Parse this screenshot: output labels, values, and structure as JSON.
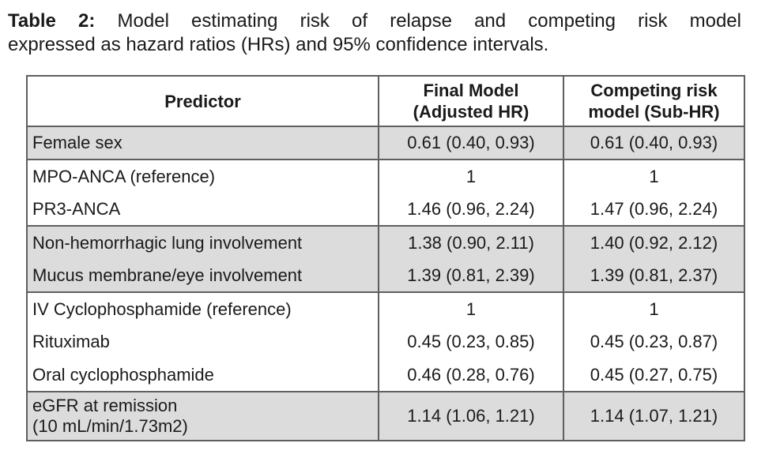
{
  "caption": {
    "label": "Table 2:",
    "line1_rest": "Model estimating risk of relapse and competing risk model",
    "line2": "expressed as hazard ratios (HRs) and 95% confidence intervals."
  },
  "colors": {
    "row_shading": "#dcdcdc",
    "table_border": "#5f5f5f",
    "text": "#1a1a1a"
  },
  "table": {
    "headers": [
      "Predictor",
      "Final Model (Adjusted HR)",
      "Competing risk model (Sub-HR)"
    ],
    "rows": [
      {
        "predictor": "Female sex",
        "final": "0.61 (0.40, 0.93)",
        "competing": "0.61 (0.40, 0.93)",
        "shaded": true
      },
      {
        "predictor": "MPO-ANCA (reference)",
        "final": "1",
        "competing": "1",
        "shaded": false
      },
      {
        "predictor": "PR3-ANCA",
        "final": "1.46 (0.96, 2.24)",
        "competing": "1.47 (0.96, 2.24)",
        "shaded": false
      },
      {
        "predictor": "Non-hemorrhagic lung involvement",
        "final": "1.38 (0.90, 2.11)",
        "competing": "1.40 (0.92, 2.12)",
        "shaded": true
      },
      {
        "predictor": "Mucus membrane/eye involvement",
        "final": "1.39 (0.81, 2.39)",
        "competing": "1.39 (0.81, 2.37)",
        "shaded": true
      },
      {
        "predictor": "IV Cyclophosphamide (reference)",
        "final": "1",
        "competing": "1",
        "shaded": false
      },
      {
        "predictor": "Rituximab",
        "final": "0.45 (0.23, 0.85)",
        "competing": "0.45 (0.23, 0.87)",
        "shaded": false
      },
      {
        "predictor": "Oral cyclophosphamide",
        "final": "0.46 (0.28, 0.76)",
        "competing": "0.45 (0.27, 0.75)",
        "shaded": false
      },
      {
        "predictor": "eGFR at remission",
        "predictor_line2": "(10 mL/min/1.73m2)",
        "final": "1.14 (1.06, 1.21)",
        "competing": "1.14 (1.07, 1.21)",
        "shaded": true
      }
    ]
  }
}
